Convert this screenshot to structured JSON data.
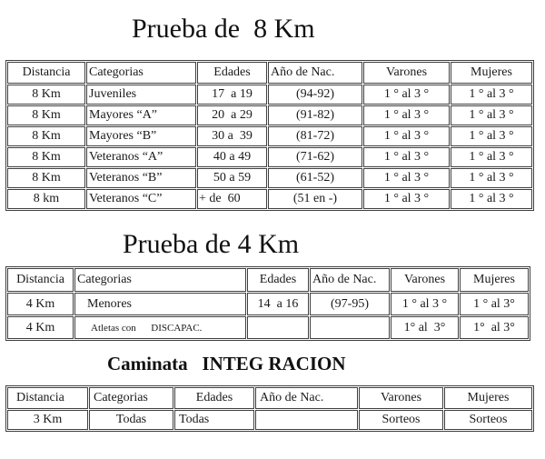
{
  "page": {
    "background_color": "#ffffff",
    "text_color": "#1a1a1a",
    "border_color": "#3f3f3f"
  },
  "sections": [
    {
      "title": "Prueba de  8 Km",
      "table": {
        "headers": [
          "Distancia",
          "Categorias",
          "Edades",
          "Año de Nac.",
          "Varones",
          "Mujeres"
        ],
        "rows": [
          [
            "8 Km",
            "Juveniles",
            "17  a 19",
            "(94-92)",
            "1 ° al 3 °",
            "1 ° al 3 °"
          ],
          [
            "8 Km",
            "Mayores “A”",
            "20  a 29",
            "(91-82)",
            "1 ° al 3 °",
            "1 ° al 3 °"
          ],
          [
            "8 Km",
            "Mayores “B”",
            "30 a  39",
            "(81-72)",
            "1 ° al 3 °",
            "1 ° al 3 °"
          ],
          [
            "8 Km",
            "Veteranos “A”",
            "40 a 49",
            "(71-62)",
            "1 ° al 3 °",
            "1 ° al 3 °"
          ],
          [
            "8 Km",
            "Veteranos “B”",
            "50 a 59",
            "(61-52)",
            "1 ° al 3 °",
            "1 ° al 3 °"
          ],
          [
            "8 km",
            "Veteranos “C”",
            "+ de  60",
            "(51 en -)",
            "1 ° al 3 °",
            "1 ° al 3 °"
          ]
        ]
      }
    },
    {
      "title": "Prueba de 4 Km",
      "table": {
        "headers": [
          "Distancia",
          "Categorias",
          "Edades",
          "Año de Nac.",
          "Varones",
          "Mujeres"
        ],
        "rows": [
          [
            "4 Km",
            "Menores",
            "14  a 16",
            "(97-95)",
            "1 ° al 3 °",
            "1 ° al 3°"
          ],
          [
            "4 Km",
            "Atletas con      DISCAPAC.",
            "",
            "",
            "1° al  3°",
            "1°  al 3°"
          ]
        ]
      }
    },
    {
      "title": "Caminata   INTEG RACION",
      "table": {
        "headers": [
          "Distancia",
          "Categorias",
          "Edades",
          "Año de Nac.",
          "Varones",
          "Mujeres"
        ],
        "rows": [
          [
            "3 Km",
            "Todas",
            "Todas",
            "",
            "Sorteos",
            "Sorteos"
          ]
        ]
      }
    }
  ]
}
